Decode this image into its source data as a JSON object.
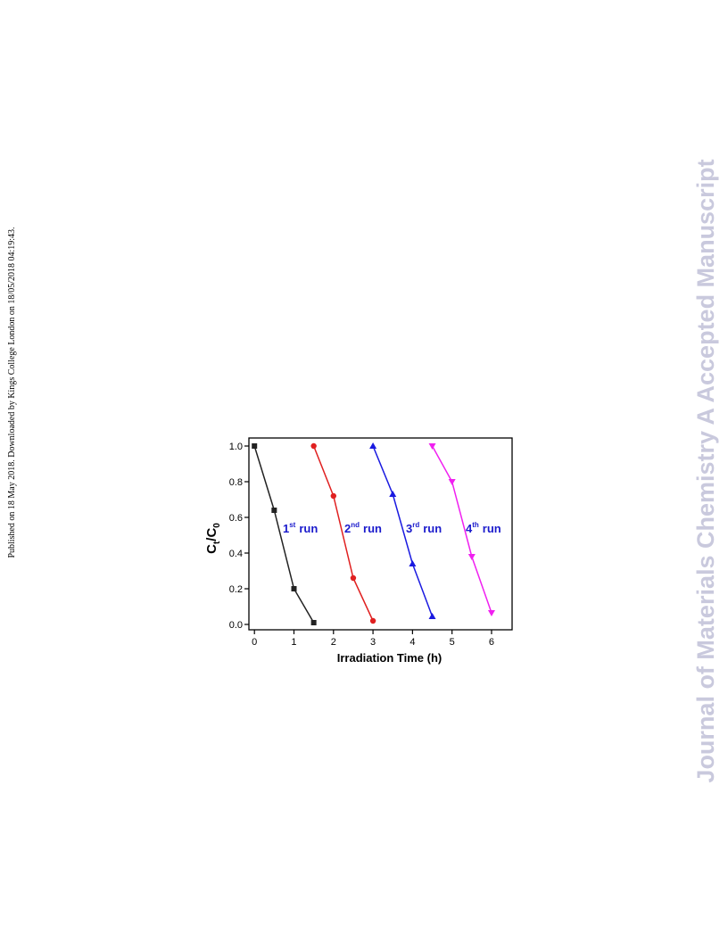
{
  "side_note": "Published on 18 May 2018. Downloaded by Kings College London on 18/05/2018 04:19:43.",
  "watermark": "Journal of Materials Chemistry A Accepted Manuscript",
  "chart_data": {
    "type": "line",
    "xlabel": "Irradiation Time (h)",
    "ylabel": [
      "C",
      "t",
      "/C",
      "0"
    ],
    "xlim": [
      -0.14,
      6.52
    ],
    "ylim": [
      -0.03,
      1.045
    ],
    "xticks": [
      0,
      1,
      2,
      3,
      4,
      5,
      6
    ],
    "yticks": [
      {
        "value": 0,
        "label": "0.0"
      },
      0.2,
      0.4,
      0.6,
      0.8,
      {
        "value": 1,
        "label": "1.0"
      }
    ],
    "series": [
      {
        "label": [
          "1",
          "st",
          "run"
        ],
        "color": "#222222",
        "label_color": "#1a1acc",
        "marker": "square",
        "x": [
          0,
          0.5,
          1,
          1.5
        ],
        "values": [
          1.0,
          0.64,
          0.2,
          0.01
        ]
      },
      {
        "label": [
          "2",
          "nd",
          "run"
        ],
        "color": "#e02020",
        "label_color": "#1a1acc",
        "marker": "circle",
        "x": [
          1.5,
          2,
          2.5,
          3
        ],
        "values": [
          1.0,
          0.72,
          0.26,
          0.02
        ]
      },
      {
        "label": [
          "3",
          "rd",
          "run"
        ],
        "color": "#1a1ae0",
        "label_color": "#1a1acc",
        "marker": "triangle-up",
        "x": [
          3,
          3.5,
          4,
          4.5
        ],
        "values": [
          1.0,
          0.73,
          0.34,
          0.045
        ]
      },
      {
        "label": [
          "4",
          "th",
          "run"
        ],
        "color": "#f020f0",
        "label_color": "#1a1acc",
        "marker": "triangle-down",
        "x": [
          4.5,
          5,
          5.5,
          6
        ],
        "values": [
          1.0,
          0.8,
          0.38,
          0.065
        ]
      }
    ]
  }
}
